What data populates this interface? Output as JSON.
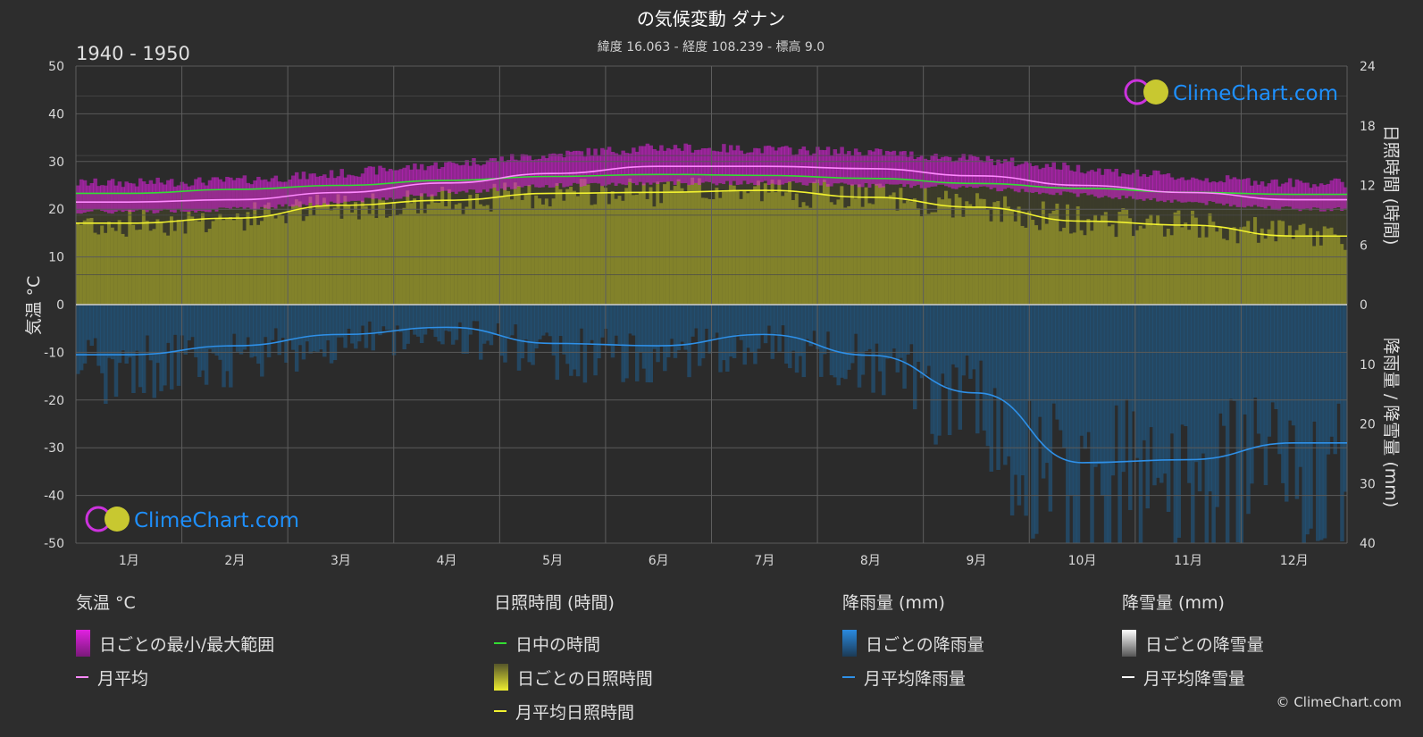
{
  "title": "の気候変動 ダナン",
  "subtitle": "緯度 16.063 - 経度 108.239 - 標高 9.0",
  "period": "1940 - 1950",
  "brand": "ClimeChart.com",
  "copyright": "© ClimeChart.com",
  "colors": {
    "background": "#2d2d2d",
    "temp_range": "#e021e0",
    "temp_mean": "#ff8aff",
    "daylight": "#33dd33",
    "sunshine_fill": "#8f8f2a",
    "sunshine_mean": "#f2f230",
    "rain_fill": "#1f5f8f",
    "rain_mean": "#2e90e8",
    "snow_mean": "#ffffff",
    "logo_text": "#1e90ff"
  },
  "chart_data": {
    "type": "area",
    "months": [
      "1月",
      "2月",
      "3月",
      "4月",
      "5月",
      "6月",
      "7月",
      "8月",
      "9月",
      "10月",
      "11月",
      "12月"
    ],
    "left_axis": {
      "label": "気温 °C",
      "ylim": [
        -50,
        50
      ],
      "ticks": [
        50,
        40,
        30,
        20,
        10,
        0,
        -10,
        -20,
        -30,
        -40,
        -50
      ]
    },
    "right_axis_top": {
      "label": "日照時間 (時間)",
      "ylim": [
        0,
        24
      ],
      "ticks": [
        24,
        18,
        12,
        6,
        0
      ]
    },
    "right_axis_bottom": {
      "label": "降雨量 / 降雪量 (mm)",
      "ylim": [
        0,
        40
      ],
      "ticks": [
        0,
        10,
        20,
        30,
        40
      ]
    },
    "grid": true,
    "series": [
      {
        "name": "月平均",
        "axis": "temperature",
        "values": [
          21.5,
          22.0,
          23.5,
          25.5,
          27.5,
          29.0,
          29.0,
          28.5,
          27.0,
          25.0,
          23.5,
          22.0
        ]
      },
      {
        "name": "日中の時間",
        "axis": "sunshine",
        "values": [
          11.2,
          11.6,
          12.0,
          12.5,
          12.9,
          13.1,
          13.0,
          12.7,
          12.2,
          11.7,
          11.3,
          11.1
        ]
      },
      {
        "name": "月平均日照時間",
        "axis": "sunshine",
        "values": [
          8.2,
          8.7,
          10.0,
          10.5,
          11.2,
          11.3,
          11.5,
          10.8,
          9.8,
          8.4,
          8.0,
          6.9
        ]
      },
      {
        "name": "月平均降雨量",
        "axis": "precipitation",
        "values": [
          8.4,
          6.9,
          5.0,
          3.8,
          6.5,
          6.9,
          5.0,
          8.5,
          14.8,
          26.5,
          26.0,
          23.2
        ]
      },
      {
        "name": "月平均降雪量",
        "axis": "precipitation",
        "values": [
          0,
          0,
          0,
          0,
          0,
          0,
          0,
          0,
          0,
          0,
          0,
          0
        ]
      }
    ],
    "temp_range": {
      "name": "日ごとの最小/最大範囲",
      "min": [
        19.5,
        20.0,
        21.5,
        23.5,
        25.0,
        25.5,
        25.5,
        25.0,
        24.5,
        23.0,
        21.5,
        20.0
      ],
      "max": [
        25.5,
        26.0,
        27.5,
        29.5,
        31.5,
        33.0,
        32.5,
        32.0,
        30.5,
        28.5,
        26.5,
        25.5
      ]
    }
  },
  "legend": {
    "temperature": {
      "header": "気温 °C",
      "items": [
        "日ごとの最小/最大範囲",
        "月平均"
      ]
    },
    "sunshine": {
      "header": "日照時間 (時間)",
      "items": [
        "日中の時間",
        "日ごとの日照時間",
        "月平均日照時間"
      ]
    },
    "rain": {
      "header": "降雨量 (mm)",
      "items": [
        "日ごとの降雨量",
        "月平均降雨量"
      ]
    },
    "snow": {
      "header": "降雪量 (mm)",
      "items": [
        "日ごとの降雪量",
        "月平均降雪量"
      ]
    }
  }
}
